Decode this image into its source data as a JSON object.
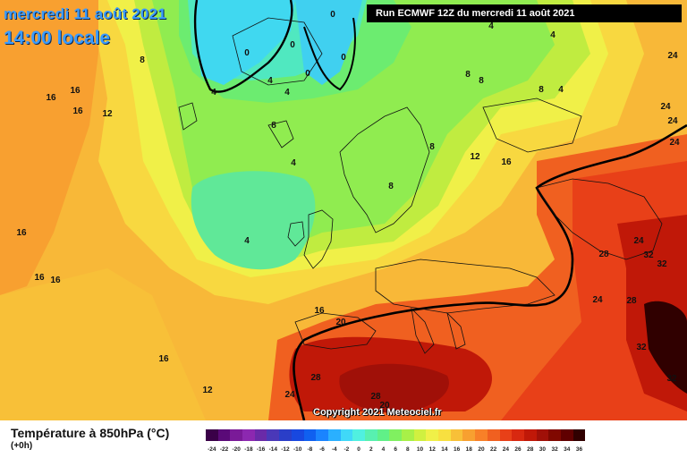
{
  "header": {
    "date_title": "mercredi 11 août 2021",
    "time_title": "14:00 locale",
    "run_info": "Run ECMWF 12Z du mercredi 11 août 2021"
  },
  "copyright": "Copyright 2021 Meteociel.fr",
  "legend": {
    "title": "Température à 850hPa (°C)",
    "subtitle": "(+0h)",
    "scale_labels": [
      "-24",
      "-22",
      "-20",
      "-18",
      "-16",
      "-14",
      "-12",
      "-10",
      "-8",
      "-6",
      "-4",
      "-2",
      "0",
      "2",
      "4",
      "6",
      "8",
      "10",
      "12",
      "14",
      "16",
      "18",
      "20",
      "22",
      "24",
      "26",
      "28",
      "30",
      "32",
      "34",
      "36"
    ],
    "scale_colors": [
      "#3a0048",
      "#5a0a78",
      "#7a1a98",
      "#8c28b0",
      "#6a2aa8",
      "#4a38b8",
      "#2a3ec8",
      "#1848e0",
      "#1060f0",
      "#1a84ff",
      "#2ab0ff",
      "#40d8f8",
      "#50f0e0",
      "#58f0b0",
      "#60f088",
      "#80f060",
      "#a8f048",
      "#d0f040",
      "#f0f048",
      "#f8e040",
      "#f8c038",
      "#f8a030",
      "#f88028",
      "#f06020",
      "#e84018",
      "#d82810",
      "#c01808",
      "#a01008",
      "#800800",
      "#600000",
      "#300000"
    ]
  },
  "map": {
    "contour_labels": [
      {
        "text": "0"
      },
      {
        "text": "0"
      },
      {
        "text": "0"
      },
      {
        "text": "0"
      },
      {
        "text": "0"
      },
      {
        "text": "4"
      },
      {
        "text": "4"
      },
      {
        "text": "4"
      },
      {
        "text": "4"
      },
      {
        "text": "4"
      },
      {
        "text": "4"
      },
      {
        "text": "4"
      },
      {
        "text": "4"
      },
      {
        "text": "8"
      },
      {
        "text": "8"
      },
      {
        "text": "8"
      },
      {
        "text": "8"
      },
      {
        "text": "8"
      },
      {
        "text": "8"
      },
      {
        "text": "8"
      },
      {
        "text": "12"
      },
      {
        "text": "12"
      },
      {
        "text": "12"
      },
      {
        "text": "16"
      },
      {
        "text": "16"
      },
      {
        "text": "16"
      },
      {
        "text": "16"
      },
      {
        "text": "16"
      },
      {
        "text": "16"
      },
      {
        "text": "16"
      },
      {
        "text": "16"
      },
      {
        "text": "16"
      },
      {
        "text": "20"
      },
      {
        "text": "20"
      },
      {
        "text": "24"
      },
      {
        "text": "24"
      },
      {
        "text": "24"
      },
      {
        "text": "24"
      },
      {
        "text": "24"
      },
      {
        "text": "24"
      },
      {
        "text": "24"
      },
      {
        "text": "28"
      },
      {
        "text": "28"
      },
      {
        "text": "28"
      },
      {
        "text": "28"
      },
      {
        "text": "32"
      },
      {
        "text": "32"
      },
      {
        "text": "32"
      },
      {
        "text": "32"
      }
    ]
  }
}
